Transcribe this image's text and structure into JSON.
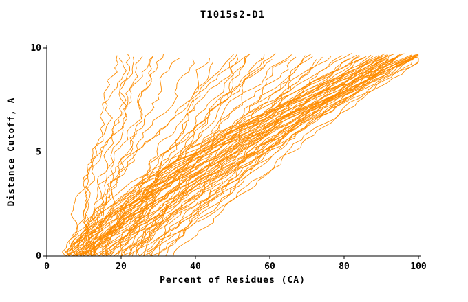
{
  "chart_data": {
    "type": "line",
    "title": "T1015s2-D1",
    "xlabel": "Percent of Residues (CA)",
    "ylabel": "Distance Cutoff, A",
    "xlim": [
      0,
      100
    ],
    "ylim": [
      0,
      10
    ],
    "x_ticks": [
      0,
      20,
      40,
      60,
      80,
      100
    ],
    "y_ticks": [
      0,
      5,
      10
    ],
    "grid": false,
    "legend": "none",
    "line_color": "#FF8C00",
    "axis_color": "#000000",
    "background": "#FFFFFF",
    "curve_model": "each curve: x(y) = x0 + (xend - x0) * (y/ytop)^p + jitter, y from 0 to ~9.6 A; values estimated from dense overlapping traces",
    "curves": [
      [
        6,
        18,
        1.0,
        1
      ],
      [
        7,
        20,
        0.9,
        2
      ],
      [
        8,
        22,
        1.1,
        3
      ],
      [
        9,
        26,
        0.8,
        4
      ],
      [
        10,
        30,
        1.0,
        5
      ],
      [
        12,
        33,
        1.2,
        6
      ],
      [
        5,
        24,
        0.7,
        7
      ],
      [
        11,
        28,
        0.9,
        8
      ],
      [
        5,
        36,
        0.9,
        9
      ],
      [
        6,
        40,
        1.0,
        10
      ],
      [
        7,
        44,
        1.1,
        11
      ],
      [
        8,
        48,
        0.8,
        12
      ],
      [
        9,
        52,
        1.0,
        13
      ],
      [
        10,
        56,
        1.2,
        14
      ],
      [
        11,
        60,
        0.9,
        15
      ],
      [
        12,
        64,
        1.0,
        16
      ],
      [
        13,
        68,
        1.1,
        17
      ],
      [
        14,
        72,
        0.85,
        18
      ],
      [
        15,
        76,
        1.0,
        19
      ],
      [
        6,
        50,
        1.3,
        20
      ],
      [
        7,
        55,
        0.75,
        21
      ],
      [
        8,
        62,
        1.15,
        22
      ],
      [
        9,
        66,
        0.95,
        23
      ],
      [
        10,
        70,
        1.05,
        24
      ],
      [
        12,
        74,
        0.9,
        25
      ],
      [
        16,
        58,
        1.0,
        26
      ],
      [
        18,
        46,
        0.9,
        27
      ],
      [
        20,
        52,
        1.1,
        28
      ],
      [
        22,
        60,
        0.95,
        29
      ],
      [
        25,
        66,
        1.0,
        30
      ],
      [
        28,
        72,
        0.9,
        31
      ],
      [
        30,
        78,
        1.05,
        32
      ],
      [
        5,
        80,
        1.1,
        33
      ],
      [
        6,
        82,
        1.2,
        34
      ],
      [
        7,
        84,
        1.0,
        35
      ],
      [
        8,
        86,
        1.3,
        36
      ],
      [
        9,
        88,
        0.9,
        37
      ],
      [
        10,
        90,
        1.1,
        38
      ],
      [
        11,
        92,
        1.2,
        39
      ],
      [
        12,
        94,
        1.0,
        40
      ],
      [
        13,
        96,
        1.25,
        41
      ],
      [
        14,
        98,
        1.1,
        42
      ],
      [
        15,
        100,
        1.0,
        43
      ],
      [
        16,
        97,
        1.35,
        44
      ],
      [
        17,
        95,
        1.15,
        45
      ],
      [
        18,
        93,
        1.0,
        46
      ],
      [
        19,
        91,
        1.2,
        47
      ],
      [
        20,
        89,
        1.05,
        48
      ],
      [
        21,
        87,
        1.3,
        49
      ],
      [
        22,
        85,
        1.1,
        50
      ],
      [
        23,
        90,
        0.95,
        51
      ],
      [
        24,
        92,
        1.2,
        52
      ],
      [
        25,
        94,
        1.05,
        53
      ],
      [
        26,
        96,
        1.15,
        54
      ],
      [
        27,
        98,
        1.0,
        55
      ],
      [
        28,
        100,
        1.25,
        56
      ],
      [
        30,
        95,
        1.1,
        57
      ],
      [
        32,
        97,
        1.2,
        58
      ],
      [
        34,
        99,
        1.05,
        59
      ],
      [
        8,
        90,
        1.5,
        60
      ],
      [
        9,
        93,
        1.4,
        61
      ],
      [
        10,
        96,
        1.55,
        62
      ],
      [
        11,
        99,
        1.45,
        63
      ],
      [
        12,
        100,
        1.6,
        64
      ],
      [
        13,
        97,
        1.5,
        65
      ],
      [
        14,
        94,
        1.35,
        66
      ],
      [
        15,
        91,
        1.45,
        67
      ],
      [
        16,
        88,
        1.55,
        68
      ],
      [
        6,
        92,
        1.4,
        69
      ],
      [
        7,
        95,
        1.5,
        70
      ],
      [
        8,
        98,
        1.6,
        71
      ],
      [
        9,
        100,
        1.35,
        72
      ],
      [
        10,
        85,
        1.25,
        73
      ],
      [
        12,
        87,
        1.45,
        74
      ],
      [
        14,
        90,
        1.5,
        75
      ],
      [
        16,
        93,
        1.4,
        76
      ],
      [
        18,
        96,
        1.3,
        77
      ],
      [
        20,
        99,
        1.5,
        78
      ],
      [
        22,
        100,
        1.35,
        79
      ],
      [
        24,
        98,
        1.45,
        80
      ],
      [
        26,
        100,
        1.2,
        81
      ],
      [
        28,
        97,
        1.4,
        82
      ]
    ]
  }
}
